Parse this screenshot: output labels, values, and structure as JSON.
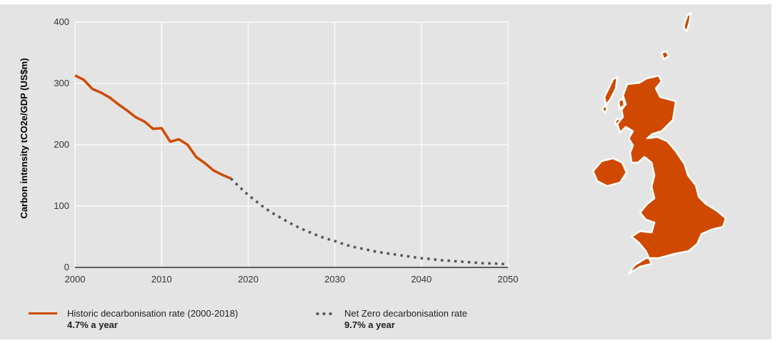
{
  "chart_data": {
    "type": "line",
    "ylabel": "Carbon intensity tCO2e/GDP (US$m)",
    "xlabel": "",
    "xlim": [
      2000,
      2050
    ],
    "ylim": [
      0,
      400
    ],
    "x_ticks": [
      "2000",
      "2010",
      "2020",
      "2030",
      "2040",
      "2050"
    ],
    "y_ticks": [
      "0",
      "100",
      "200",
      "300",
      "400"
    ],
    "grid": true,
    "legend_position": "bottom",
    "colors": {
      "historic": "#cf4a00",
      "net_zero": "#555555",
      "map": "#cf4a00"
    },
    "series": [
      {
        "name": "Historic decarbonisation rate (2000-2018)",
        "rate": "4.7% a year",
        "style": "solid",
        "x": [
          2000,
          2001,
          2002,
          2003,
          2004,
          2005,
          2006,
          2007,
          2008,
          2009,
          2010,
          2011,
          2012,
          2013,
          2014,
          2015,
          2016,
          2017,
          2018
        ],
        "y": [
          313,
          306,
          291,
          285,
          277,
          266,
          256,
          245,
          238,
          226,
          227,
          205,
          209,
          200,
          180,
          170,
          158,
          151,
          145
        ]
      },
      {
        "name": "Net Zero decarbonisation rate",
        "rate": "9.7% a year",
        "style": "dotted",
        "x": [
          2018,
          2019,
          2020,
          2021,
          2022,
          2023,
          2024,
          2025,
          2026,
          2027,
          2028,
          2029,
          2030,
          2031,
          2032,
          2033,
          2034,
          2035,
          2036,
          2037,
          2038,
          2039,
          2040,
          2041,
          2042,
          2043,
          2044,
          2045,
          2046,
          2047,
          2048,
          2049,
          2050
        ],
        "y": [
          145,
          131,
          118,
          107,
          96,
          87,
          79,
          71,
          64,
          58,
          52,
          47,
          43,
          38,
          34,
          31,
          28,
          25,
          23,
          21,
          19,
          17,
          15,
          14,
          12,
          11,
          10,
          9,
          8,
          7,
          6.5,
          6,
          5
        ]
      }
    ]
  }
}
